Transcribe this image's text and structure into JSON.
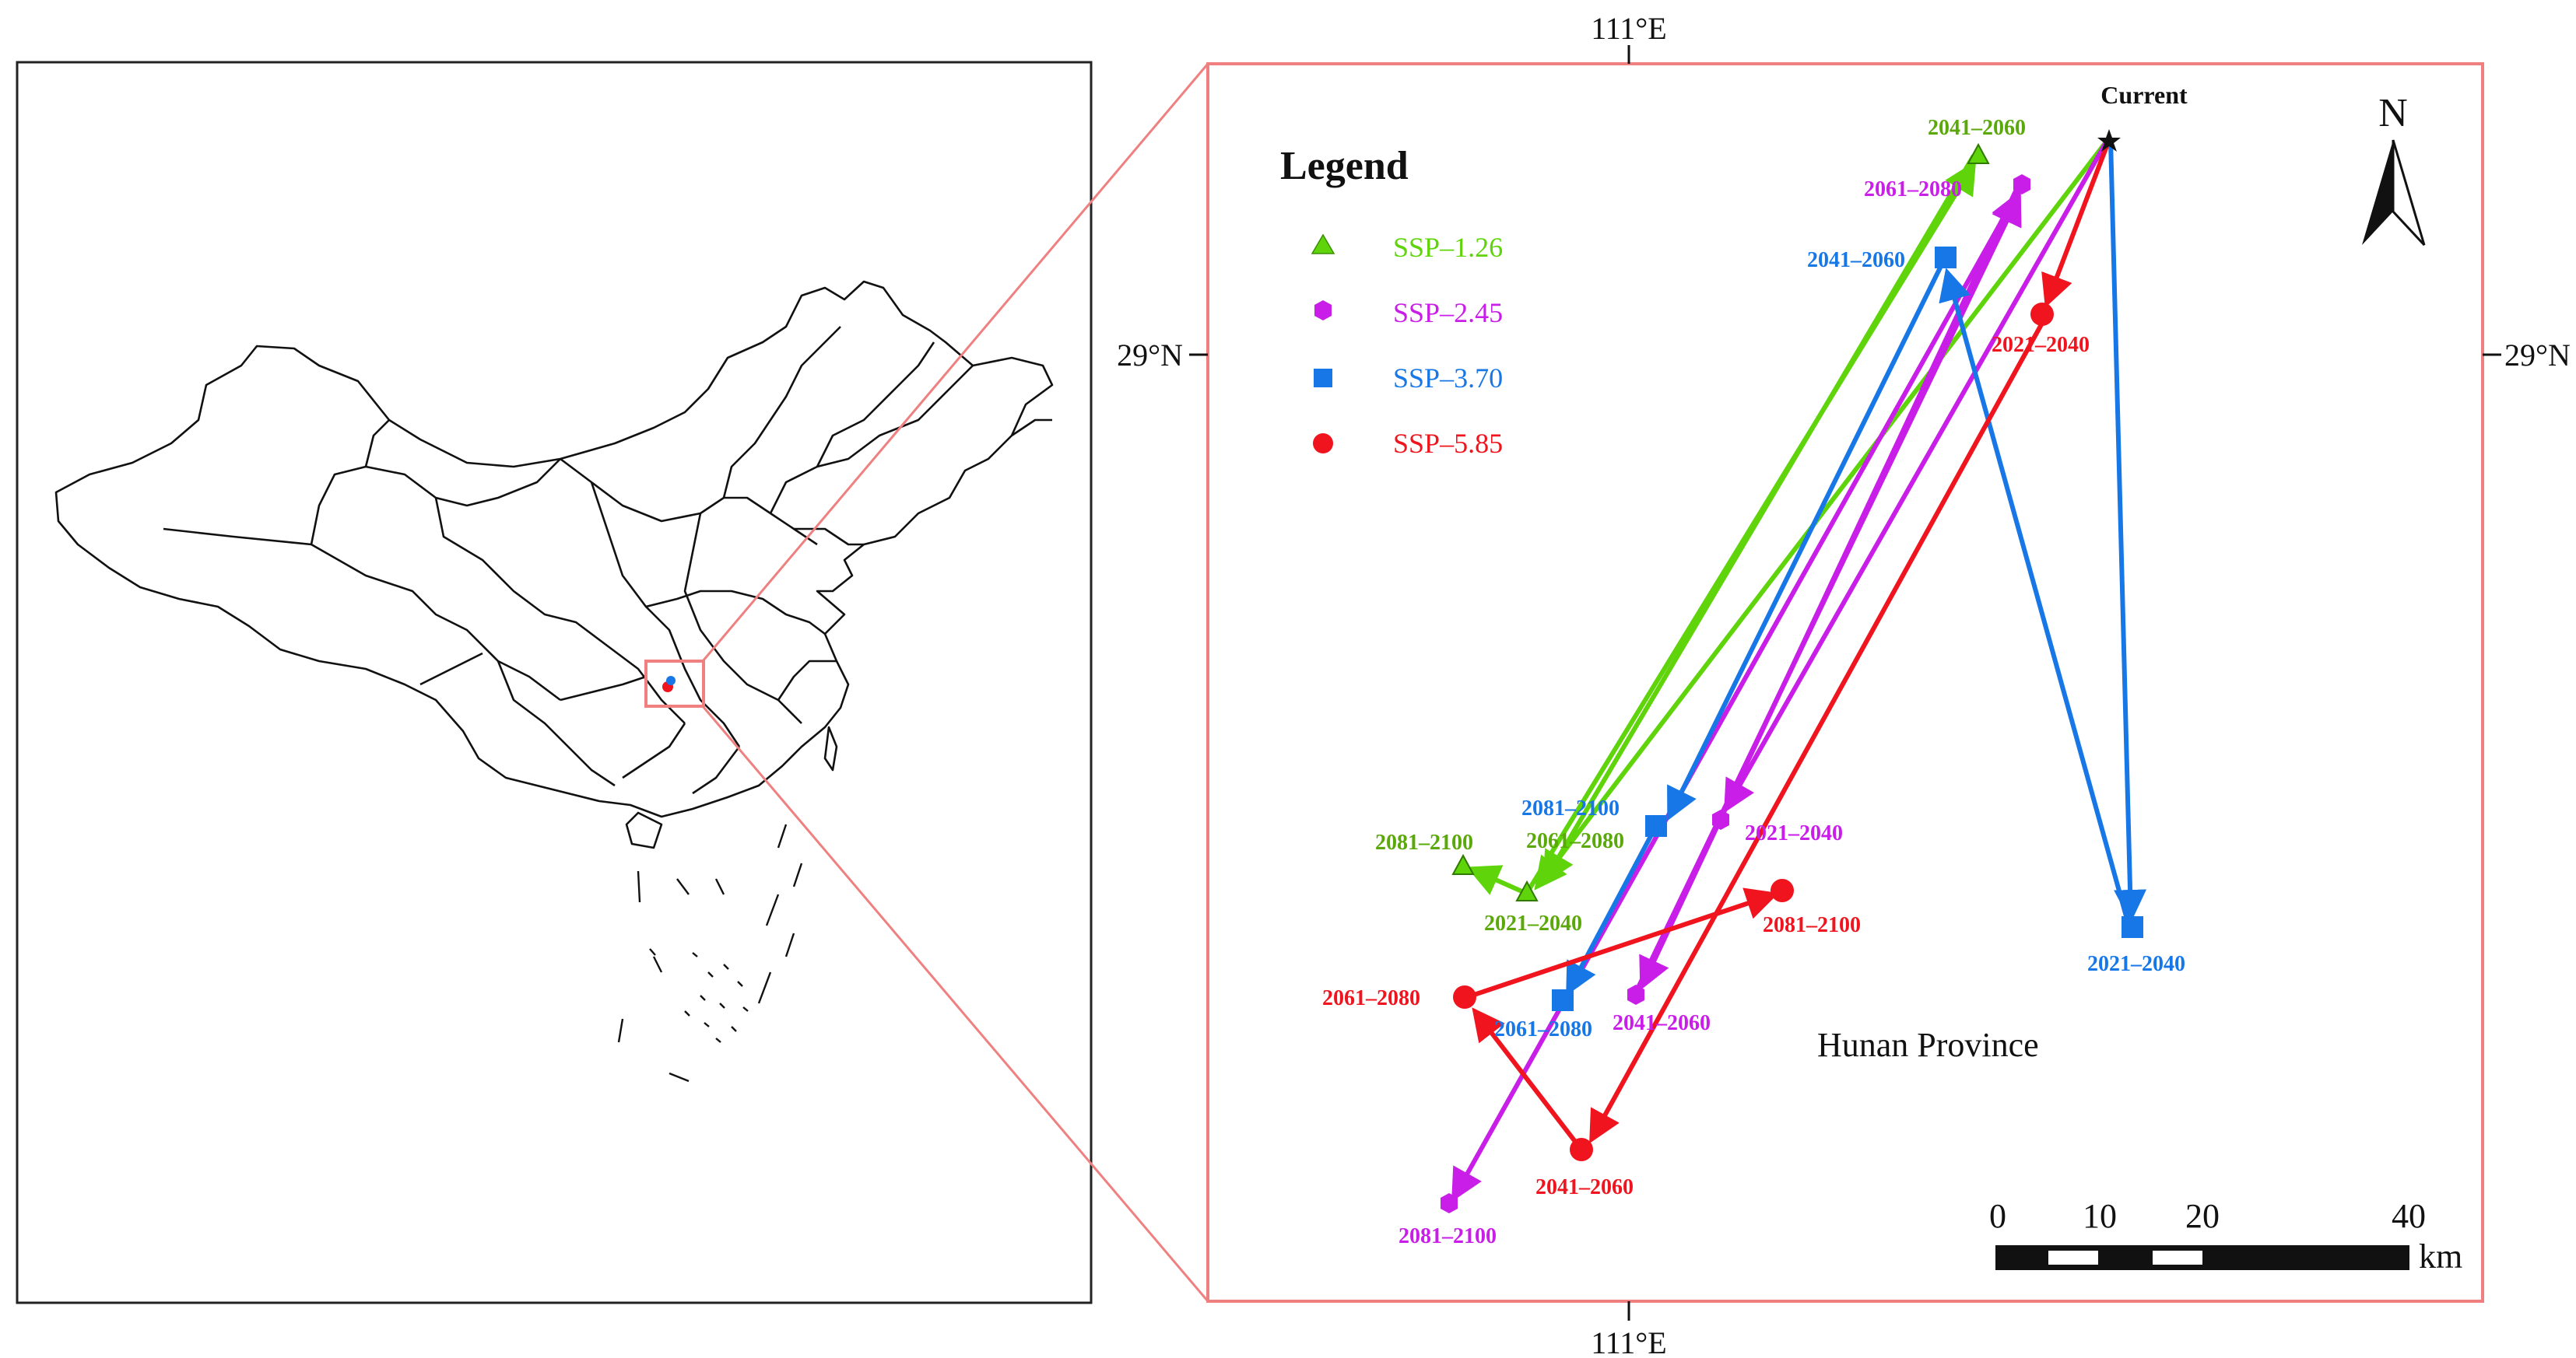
{
  "axes": {
    "lon_label": "111°E",
    "lat_label": "29°N"
  },
  "legend": {
    "title": "Legend",
    "items": [
      {
        "label": "SSP–1.26",
        "color": "#5fd40a",
        "marker": "triangle"
      },
      {
        "label": "SSP–2.45",
        "color": "#c81ee8",
        "marker": "hexagon"
      },
      {
        "label": "SSP–3.70",
        "color": "#1877e6",
        "marker": "square"
      },
      {
        "label": "SSP–5.85",
        "color": "#f0141e",
        "marker": "circle"
      }
    ]
  },
  "origin": {
    "label": "Current"
  },
  "region": {
    "label": "Hunan Province"
  },
  "north_arrow": {
    "label": "N"
  },
  "scalebar": {
    "ticks": [
      "0",
      "10",
      "20",
      "40"
    ],
    "unit": "km"
  },
  "periods": {
    "p1": "2021–2040",
    "p2": "2041–2060",
    "p3": "2061–2080",
    "p4": "2081–2100"
  },
  "colors": {
    "ssp126": "#5fd40a",
    "ssp245": "#c81ee8",
    "ssp370": "#1877e6",
    "ssp585": "#f0141e",
    "frame": "#f08080"
  }
}
